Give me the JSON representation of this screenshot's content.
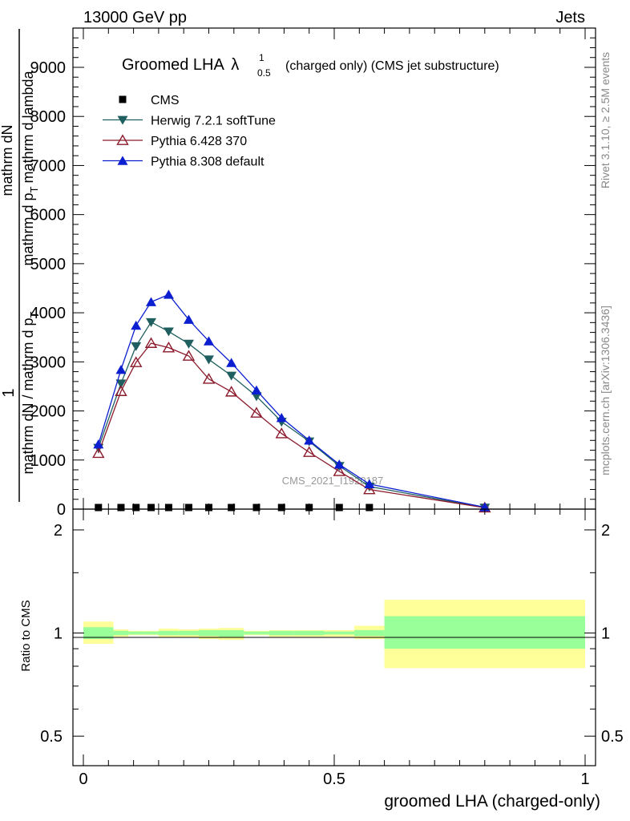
{
  "header": {
    "left": "13000 GeV pp",
    "right": "Jets"
  },
  "side": {
    "rivet": "Rivet 3.1.10, ≥ 2.5M events",
    "mcplots": "mcplots.cern.ch [arXiv:1306.3436]"
  },
  "watermark": "CMS_2021_I1920187",
  "chart_data": [
    {
      "type": "line",
      "title_main": "Groomed LHA",
      "title_lambda": "λ",
      "title_sup": "1",
      "title_sub": "0.5",
      "title_rest": "(charged only) (CMS jet substructure)",
      "ylabel_top": "1",
      "ylabel_left_num": "mathrm dN",
      "ylabel_left_den": "mathrm dN / mathrm d p",
      "ylabel_left_den_sub": "T",
      "ylabel_right_num": "mathrm d p",
      "ylabel_right_num_sub": "T",
      "ylabel_right_tail": "mathrm d lambda",
      "xlim": [
        0,
        1
      ],
      "ylim": [
        0,
        9800
      ],
      "yticks": [
        0,
        1000,
        2000,
        3000,
        4000,
        5000,
        6000,
        7000,
        8000,
        9000
      ],
      "ytick_labels": [
        "0",
        "1000",
        "2000",
        "3000",
        "4000",
        "5000",
        "6000",
        "7000",
        "8000",
        "9000"
      ],
      "legend_position": "top-left",
      "series": [
        {
          "name": "CMS",
          "color": "#000000",
          "marker": "square",
          "x": [
            0.03,
            0.075,
            0.105,
            0.135,
            0.17,
            0.21,
            0.25,
            0.295,
            0.345,
            0.395,
            0.45,
            0.51,
            0.57,
            0.8
          ],
          "values": [
            20,
            20,
            20,
            20,
            20,
            20,
            20,
            20,
            20,
            20,
            20,
            20,
            20,
            20
          ]
        },
        {
          "name": "Herwig 7.2.1 softTune",
          "color": "#1f5f5f",
          "marker": "triangle-down",
          "x": [
            0.03,
            0.075,
            0.105,
            0.135,
            0.17,
            0.21,
            0.25,
            0.295,
            0.345,
            0.395,
            0.45,
            0.51,
            0.57,
            0.8
          ],
          "values": [
            1250,
            2560,
            3320,
            3810,
            3620,
            3370,
            3050,
            2720,
            2300,
            1780,
            1380,
            880,
            460,
            30
          ]
        },
        {
          "name": "Pythia 6.428 370",
          "color": "#8b1a2b",
          "marker": "triangle-up-open",
          "x": [
            0.03,
            0.075,
            0.105,
            0.135,
            0.17,
            0.21,
            0.25,
            0.295,
            0.345,
            0.395,
            0.45,
            0.51,
            0.57,
            0.8
          ],
          "values": [
            1140,
            2400,
            2990,
            3380,
            3290,
            3120,
            2650,
            2390,
            1960,
            1540,
            1160,
            770,
            400,
            30
          ]
        },
        {
          "name": "Pythia 8.308 default",
          "color": "#0b1fd1",
          "marker": "triangle-up",
          "x": [
            0.03,
            0.075,
            0.105,
            0.135,
            0.17,
            0.21,
            0.25,
            0.295,
            0.345,
            0.395,
            0.45,
            0.51,
            0.57,
            0.8
          ],
          "values": [
            1320,
            2840,
            3740,
            4220,
            4370,
            3860,
            3420,
            2980,
            2420,
            1860,
            1400,
            910,
            510,
            40
          ]
        }
      ]
    },
    {
      "type": "area",
      "ylabel": "Ratio to CMS",
      "xlabel": "groomed LHA (charged-only)",
      "xlim": [
        0,
        1
      ],
      "ylim": [
        0.41,
        2.3
      ],
      "y_scale": "log",
      "yticks": [
        0.5,
        1,
        2
      ],
      "ytick_labels": [
        "0.5",
        "1",
        "2"
      ],
      "xticks": [
        0,
        0.5,
        1
      ],
      "xtick_labels": [
        "0",
        "0.5",
        "1"
      ],
      "band_colors": {
        "inner": "#99ff99",
        "outer": "#ffff99",
        "line": "#000000"
      },
      "bins": [
        {
          "x0": 0.0,
          "x1": 0.06,
          "inner": [
            0.96,
            1.04
          ],
          "outer": [
            0.93,
            1.08
          ]
        },
        {
          "x0": 0.06,
          "x1": 0.09,
          "inner": [
            0.985,
            1.015
          ],
          "outer": [
            0.975,
            1.025
          ]
        },
        {
          "x0": 0.09,
          "x1": 0.12,
          "inner": [
            0.99,
            1.01
          ],
          "outer": [
            0.985,
            1.015
          ]
        },
        {
          "x0": 0.12,
          "x1": 0.15,
          "inner": [
            0.99,
            1.01
          ],
          "outer": [
            0.985,
            1.015
          ]
        },
        {
          "x0": 0.15,
          "x1": 0.19,
          "inner": [
            0.985,
            1.015
          ],
          "outer": [
            0.97,
            1.03
          ]
        },
        {
          "x0": 0.19,
          "x1": 0.23,
          "inner": [
            0.985,
            1.015
          ],
          "outer": [
            0.97,
            1.025
          ]
        },
        {
          "x0": 0.23,
          "x1": 0.27,
          "inner": [
            0.98,
            1.02
          ],
          "outer": [
            0.96,
            1.03
          ]
        },
        {
          "x0": 0.27,
          "x1": 0.32,
          "inner": [
            0.975,
            1.02
          ],
          "outer": [
            0.955,
            1.035
          ]
        },
        {
          "x0": 0.32,
          "x1": 0.37,
          "inner": [
            0.99,
            1.01
          ],
          "outer": [
            0.985,
            1.015
          ]
        },
        {
          "x0": 0.37,
          "x1": 0.42,
          "inner": [
            0.985,
            1.015
          ],
          "outer": [
            0.975,
            1.02
          ]
        },
        {
          "x0": 0.42,
          "x1": 0.48,
          "inner": [
            0.985,
            1.015
          ],
          "outer": [
            0.975,
            1.02
          ]
        },
        {
          "x0": 0.48,
          "x1": 0.54,
          "inner": [
            0.99,
            1.01
          ],
          "outer": [
            0.975,
            1.02
          ]
        },
        {
          "x0": 0.54,
          "x1": 0.6,
          "inner": [
            0.98,
            1.02
          ],
          "outer": [
            0.96,
            1.05
          ]
        },
        {
          "x0": 0.6,
          "x1": 1.0,
          "inner": [
            0.9,
            1.12
          ],
          "outer": [
            0.79,
            1.25
          ]
        }
      ]
    }
  ]
}
